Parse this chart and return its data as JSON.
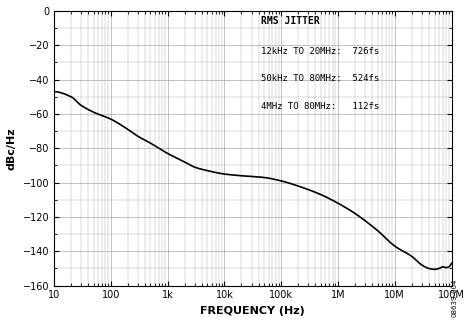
{
  "title": "",
  "xlabel": "FREQUENCY (Hz)",
  "ylabel": "dBc/Hz",
  "xlim": [
    10,
    100000000.0
  ],
  "ylim": [
    -160,
    0
  ],
  "yticks": [
    0,
    -20,
    -40,
    -60,
    -80,
    -100,
    -120,
    -140,
    -160
  ],
  "annotation_title": "RMS JITTER",
  "annotation_lines": [
    "12kHz TO 20MHz:  726fs",
    "50kHz TO 80MHz:  524fs",
    "4MHz TO 80MHz:   112fs"
  ],
  "watermark": "08639-004",
  "curve_color": "#000000",
  "background_color": "#ffffff",
  "grid_color": "#aaaaaa"
}
